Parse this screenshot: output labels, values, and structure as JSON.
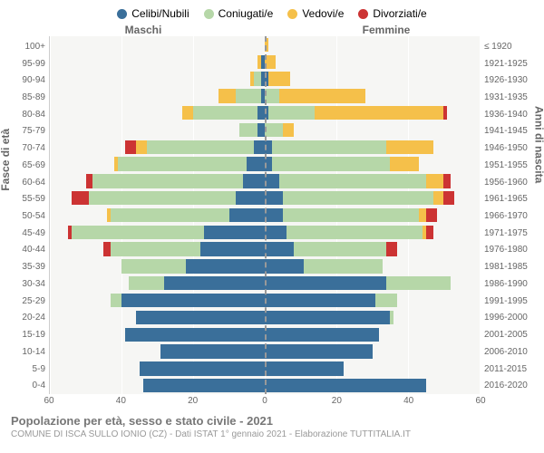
{
  "legend": [
    {
      "label": "Celibi/Nubili",
      "color": "#3a6f9a"
    },
    {
      "label": "Coniugati/e",
      "color": "#b6d7a8"
    },
    {
      "label": "Vedovi/e",
      "color": "#f5c04a"
    },
    {
      "label": "Divorziati/e",
      "color": "#cc3333"
    }
  ],
  "header_left": "Maschi",
  "header_right": "Femmine",
  "y_left_label": "Fasce di età",
  "y_right_label": "Anni di nascita",
  "x_max": 60,
  "x_ticks_left": [
    60,
    40,
    20,
    0
  ],
  "x_ticks_right": [
    0,
    20,
    40,
    60
  ],
  "colors": {
    "celibi": "#3a6f9a",
    "coniugati": "#b6d7a8",
    "vedovi": "#f5c04a",
    "divorziati": "#cc3333",
    "background_plot": "#f6f6f4",
    "gridline": "#ffffff",
    "centerline": "#999999",
    "text_muted": "#666666",
    "text_light": "#999999"
  },
  "fonts": {
    "legend_size": 12,
    "tick_size": 10,
    "title_size": 13,
    "subtitle_size": 10
  },
  "rows": [
    {
      "age": "100+",
      "birth": "≤ 1920",
      "m": [
        0,
        0,
        0,
        0
      ],
      "f": [
        0,
        0,
        1,
        0
      ]
    },
    {
      "age": "95-99",
      "birth": "1921-1925",
      "m": [
        1,
        0,
        1,
        0
      ],
      "f": [
        0,
        0,
        3,
        0
      ]
    },
    {
      "age": "90-94",
      "birth": "1926-1930",
      "m": [
        1,
        2,
        1,
        0
      ],
      "f": [
        1,
        0,
        6,
        0
      ]
    },
    {
      "age": "85-89",
      "birth": "1931-1935",
      "m": [
        1,
        7,
        5,
        0
      ],
      "f": [
        0,
        4,
        24,
        0
      ]
    },
    {
      "age": "80-84",
      "birth": "1936-1940",
      "m": [
        2,
        18,
        3,
        0
      ],
      "f": [
        1,
        13,
        36,
        1
      ]
    },
    {
      "age": "75-79",
      "birth": "1941-1945",
      "m": [
        2,
        5,
        0,
        0
      ],
      "f": [
        0,
        5,
        3,
        0
      ]
    },
    {
      "age": "70-74",
      "birth": "1946-1950",
      "m": [
        3,
        30,
        3,
        3
      ],
      "f": [
        2,
        32,
        13,
        0
      ]
    },
    {
      "age": "65-69",
      "birth": "1951-1955",
      "m": [
        5,
        36,
        1,
        0
      ],
      "f": [
        2,
        33,
        8,
        0
      ]
    },
    {
      "age": "60-64",
      "birth": "1956-1960",
      "m": [
        6,
        42,
        0,
        2
      ],
      "f": [
        4,
        41,
        5,
        2
      ]
    },
    {
      "age": "55-59",
      "birth": "1961-1965",
      "m": [
        8,
        41,
        0,
        5
      ],
      "f": [
        5,
        42,
        3,
        3
      ]
    },
    {
      "age": "50-54",
      "birth": "1966-1970",
      "m": [
        10,
        33,
        1,
        0
      ],
      "f": [
        5,
        38,
        2,
        3
      ]
    },
    {
      "age": "45-49",
      "birth": "1971-1975",
      "m": [
        17,
        37,
        0,
        1
      ],
      "f": [
        6,
        38,
        1,
        2
      ]
    },
    {
      "age": "40-44",
      "birth": "1976-1980",
      "m": [
        18,
        25,
        0,
        2
      ],
      "f": [
        8,
        26,
        0,
        3
      ]
    },
    {
      "age": "35-39",
      "birth": "1981-1985",
      "m": [
        22,
        18,
        0,
        0
      ],
      "f": [
        11,
        22,
        0,
        0
      ]
    },
    {
      "age": "30-34",
      "birth": "1986-1990",
      "m": [
        28,
        10,
        0,
        0
      ],
      "f": [
        34,
        18,
        0,
        0
      ]
    },
    {
      "age": "25-29",
      "birth": "1991-1995",
      "m": [
        40,
        3,
        0,
        0
      ],
      "f": [
        31,
        6,
        0,
        0
      ]
    },
    {
      "age": "20-24",
      "birth": "1996-2000",
      "m": [
        36,
        0,
        0,
        0
      ],
      "f": [
        35,
        1,
        0,
        0
      ]
    },
    {
      "age": "15-19",
      "birth": "2001-2005",
      "m": [
        39,
        0,
        0,
        0
      ],
      "f": [
        32,
        0,
        0,
        0
      ]
    },
    {
      "age": "10-14",
      "birth": "2006-2010",
      "m": [
        29,
        0,
        0,
        0
      ],
      "f": [
        30,
        0,
        0,
        0
      ]
    },
    {
      "age": "5-9",
      "birth": "2011-2015",
      "m": [
        35,
        0,
        0,
        0
      ],
      "f": [
        22,
        0,
        0,
        0
      ]
    },
    {
      "age": "0-4",
      "birth": "2016-2020",
      "m": [
        34,
        0,
        0,
        0
      ],
      "f": [
        45,
        0,
        0,
        0
      ]
    }
  ],
  "title": "Popolazione per età, sesso e stato civile - 2021",
  "subtitle": "COMUNE DI ISCA SULLO IONIO (CZ) - Dati ISTAT 1° gennaio 2021 - Elaborazione TUTTITALIA.IT"
}
